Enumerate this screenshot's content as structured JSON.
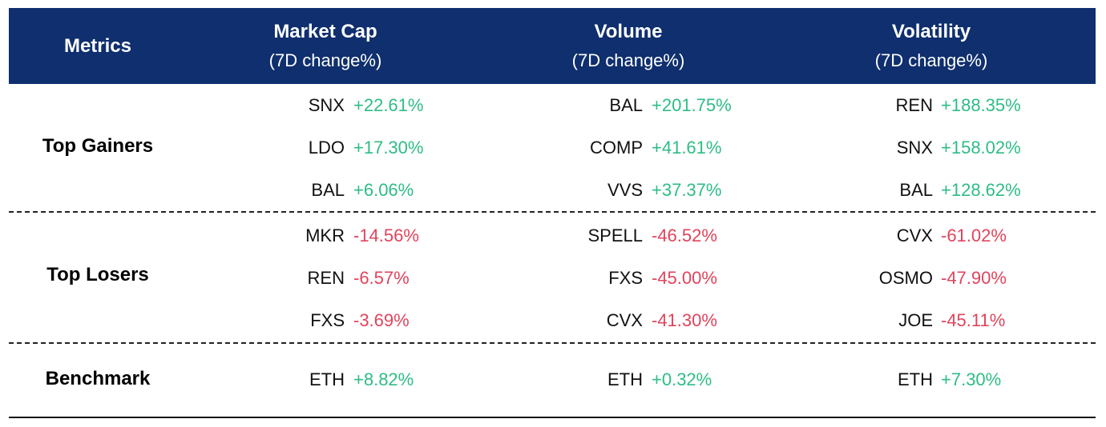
{
  "header": {
    "metrics": "Metrics",
    "columns": [
      {
        "title": "Market Cap",
        "sub": "(7D change%)"
      },
      {
        "title": "Volume",
        "sub": "(7D change%)"
      },
      {
        "title": "Volatility",
        "sub": "(7D change%)"
      }
    ]
  },
  "sections": {
    "gainers": {
      "label": "Top Gainers",
      "rows": [
        [
          {
            "sym": "SNX",
            "val": "+22.61%"
          },
          {
            "sym": "BAL",
            "val": "+201.75%"
          },
          {
            "sym": "REN",
            "val": "+188.35%"
          }
        ],
        [
          {
            "sym": "LDO",
            "val": "+17.30%"
          },
          {
            "sym": "COMP",
            "val": "+41.61%"
          },
          {
            "sym": "SNX",
            "val": "+158.02%"
          }
        ],
        [
          {
            "sym": "BAL",
            "val": "+6.06%"
          },
          {
            "sym": "VVS",
            "val": "+37.37%"
          },
          {
            "sym": "BAL",
            "val": "+128.62%"
          }
        ]
      ]
    },
    "losers": {
      "label": "Top Losers",
      "rows": [
        [
          {
            "sym": "MKR",
            "val": "-14.56%"
          },
          {
            "sym": "SPELL",
            "val": "-46.52%"
          },
          {
            "sym": "CVX",
            "val": "-61.02%"
          }
        ],
        [
          {
            "sym": "REN",
            "val": "-6.57%"
          },
          {
            "sym": "FXS",
            "val": "-45.00%"
          },
          {
            "sym": "OSMO",
            "val": "-47.90%"
          }
        ],
        [
          {
            "sym": "FXS",
            "val": "-3.69%"
          },
          {
            "sym": "CVX",
            "val": "-41.30%"
          },
          {
            "sym": "JOE",
            "val": "-45.11%"
          }
        ]
      ]
    },
    "benchmark": {
      "label": "Benchmark",
      "rows": [
        [
          {
            "sym": "ETH",
            "val": "+8.82%"
          },
          {
            "sym": "ETH",
            "val": "+0.32%"
          },
          {
            "sym": "ETH",
            "val": "+7.30%"
          }
        ]
      ]
    }
  },
  "colors": {
    "header_bg": "#0f2f6e",
    "positive": "#2ebd85",
    "negative": "#e0445c"
  }
}
